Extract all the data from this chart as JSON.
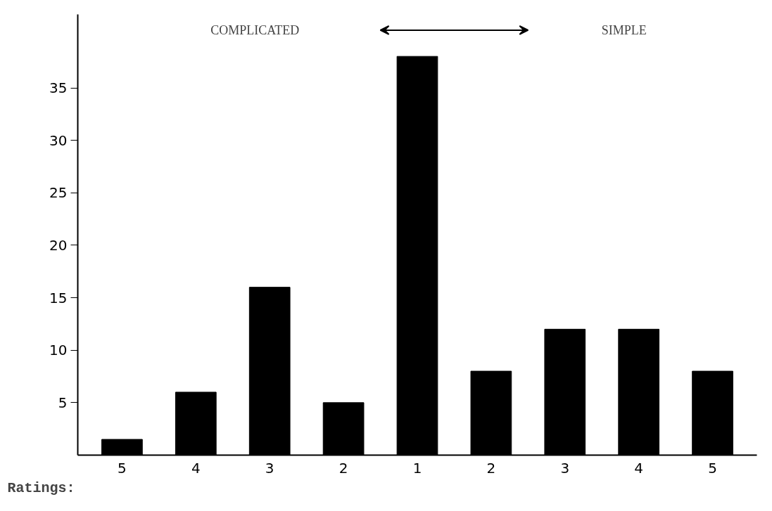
{
  "chart_data": {
    "type": "bar",
    "xlabel": "Ratings:",
    "categories": [
      "5",
      "4",
      "3",
      "2",
      "1",
      "2",
      "3",
      "4",
      "5"
    ],
    "values": [
      1.5,
      6,
      16,
      5,
      38,
      8,
      12,
      12,
      8
    ],
    "colors": [
      "#000000",
      "#000000",
      "#000000",
      "#000000",
      "#000000",
      "#000000",
      "#000000",
      "#000000",
      "#000000"
    ],
    "ylim": [
      0,
      42
    ],
    "yticks": [
      5,
      10,
      15,
      20,
      25,
      30,
      35
    ],
    "grid": false,
    "annotations": [
      "COMPLICATED",
      "SIMPLE"
    ]
  }
}
